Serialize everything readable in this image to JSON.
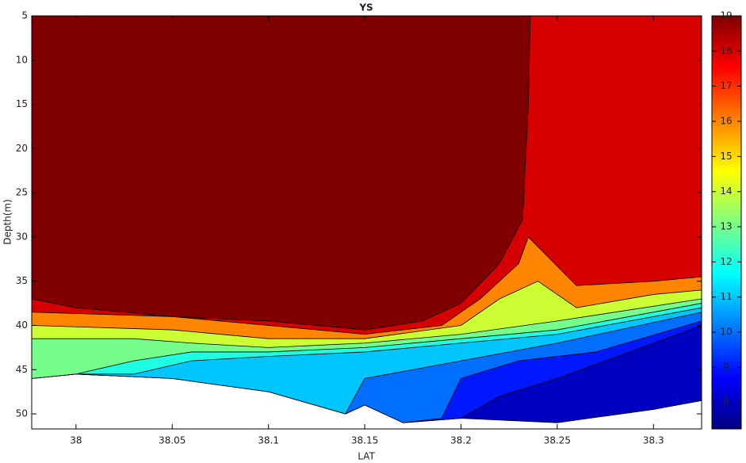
{
  "chart_data": {
    "type": "contourf",
    "title": "YS",
    "xlabel": "LAT",
    "ylabel": "Depth(m)",
    "xlim": [
      37.977,
      38.325
    ],
    "xticks": [
      38,
      38.05,
      38.1,
      38.15,
      38.2,
      38.25,
      38.3
    ],
    "ylim": [
      5,
      51.7
    ],
    "yticks": [
      5,
      10,
      15,
      20,
      25,
      30,
      35,
      40,
      45,
      50
    ],
    "y_reversed": true,
    "colormap": "jet",
    "clim": [
      7.25,
      19
    ],
    "cticks": [
      8,
      9,
      10,
      11,
      12,
      13,
      14,
      15,
      16,
      17,
      18,
      19
    ],
    "regions": [
      {
        "level": 8,
        "lat": [
          37.977,
          38.0,
          38.05,
          38.1,
          38.14,
          38.15,
          38.17,
          38.2,
          38.25,
          38.3,
          38.325
        ],
        "depth": [
          46,
          45.5,
          46,
          47.5,
          50,
          49,
          51,
          50.5,
          51,
          49.5,
          48.5
        ]
      },
      {
        "level": 9,
        "lat": [
          37.977,
          38.0,
          38.05,
          38.1,
          38.14,
          38.15,
          38.17,
          38.2,
          38.22,
          38.25,
          38.3,
          38.325
        ],
        "depth": [
          46,
          45.5,
          46,
          47.5,
          50,
          49,
          51,
          50.5,
          48,
          46,
          42,
          40
        ]
      },
      {
        "level": 10,
        "lat": [
          37.977,
          38.0,
          38.05,
          38.1,
          38.14,
          38.15,
          38.17,
          38.19,
          38.2,
          38.23,
          38.27,
          38.325
        ],
        "depth": [
          46,
          45.5,
          46,
          47.5,
          50,
          49,
          51,
          50.5,
          46,
          44,
          43,
          39.5
        ]
      },
      {
        "level": 11,
        "lat": [
          37.977,
          38.0,
          38.05,
          38.1,
          38.14,
          38.15,
          38.2,
          38.25,
          38.325
        ],
        "depth": [
          46,
          45.5,
          46,
          47.5,
          50,
          46,
          44,
          42,
          38.5
        ]
      },
      {
        "level": 12,
        "lat": [
          37.977,
          38.0,
          38.03,
          38.06,
          38.1,
          38.15,
          38.2,
          38.25,
          38.325
        ],
        "depth": [
          46,
          45.5,
          45.5,
          44,
          43.5,
          43,
          42,
          41,
          38
        ]
      },
      {
        "level": 13,
        "lat": [
          37.977,
          38.0,
          38.03,
          38.06,
          38.1,
          38.15,
          38.2,
          38.25,
          38.325
        ],
        "depth": [
          46,
          45.5,
          44,
          43,
          43,
          42.5,
          41.5,
          40.5,
          37.5
        ]
      },
      {
        "level": 14,
        "lat": [
          37.977,
          38.03,
          38.06,
          38.1,
          38.15,
          38.2,
          38.25,
          38.325
        ],
        "depth": [
          41.5,
          41.5,
          42,
          42.5,
          42,
          41,
          39.5,
          37
        ]
      },
      {
        "level": 16,
        "lat": [
          37.977,
          38.05,
          38.1,
          38.15,
          38.2,
          38.22,
          38.24,
          38.26,
          38.3,
          38.325
        ],
        "depth": [
          40,
          40.5,
          41.5,
          41.5,
          40,
          37,
          35,
          38,
          36.5,
          36
        ]
      },
      {
        "level": 18,
        "lat": [
          37.977,
          38.05,
          38.1,
          38.15,
          38.19,
          38.21,
          38.23,
          38.235,
          38.26,
          38.3,
          38.325
        ],
        "depth": [
          38.5,
          39,
          40,
          41,
          40,
          37,
          33,
          30,
          35.5,
          35,
          34.5
        ]
      },
      {
        "level": 19,
        "lat": [
          37.977,
          38.0,
          38.05,
          38.1,
          38.15,
          38.18,
          38.2,
          38.22,
          38.232,
          38.235,
          38.236
        ],
        "depth": [
          37,
          38,
          39,
          39.5,
          40.5,
          39.5,
          37.5,
          33,
          28,
          15,
          5
        ]
      }
    ]
  }
}
